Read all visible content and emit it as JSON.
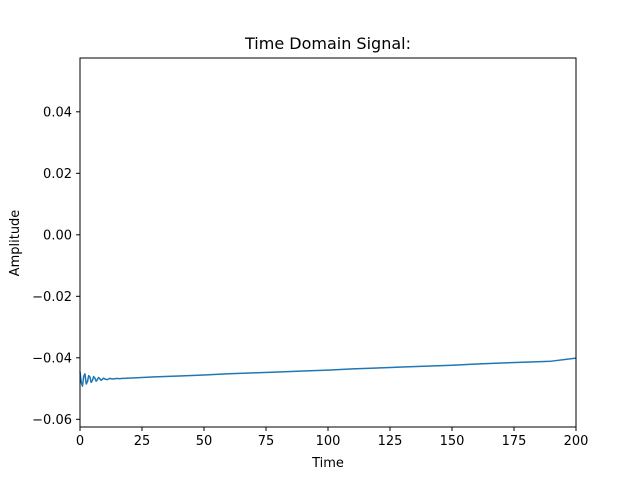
{
  "chart_data": {
    "type": "line",
    "title": "Time Domain Signal:",
    "xlabel": "Time",
    "ylabel": "Amplitude",
    "xlim": [
      0,
      200
    ],
    "ylim": [
      -0.0625,
      0.0575
    ],
    "xticks": [
      0,
      25,
      50,
      75,
      100,
      125,
      150,
      175,
      200
    ],
    "xtick_labels": [
      "0",
      "25",
      "50",
      "75",
      "100",
      "125",
      "150",
      "175",
      "200"
    ],
    "yticks": [
      -0.06,
      -0.04,
      -0.02,
      0.0,
      0.02,
      0.04
    ],
    "ytick_labels": [
      "−0.06",
      "−0.04",
      "−0.02",
      "0.00",
      "0.02",
      "0.04"
    ],
    "grid": false,
    "line_color": "#1f77b4",
    "series": [
      {
        "x": [
          0,
          0.5,
          1,
          1.5,
          2,
          2.5,
          3,
          3.5,
          4,
          4.5,
          5,
          5.5,
          6,
          6.5,
          7,
          7.5,
          8,
          8.5,
          9,
          9.5,
          10,
          11,
          12,
          13,
          14,
          15,
          16,
          17,
          18,
          19,
          20,
          25,
          30,
          40,
          50,
          60,
          70,
          80,
          90,
          100,
          110,
          120,
          130,
          140,
          150,
          160,
          170,
          180,
          190,
          200
        ],
        "y": [
          -0.0445,
          -0.048,
          -0.0492,
          -0.046,
          -0.0452,
          -0.0485,
          -0.0478,
          -0.0458,
          -0.0462,
          -0.048,
          -0.0474,
          -0.0461,
          -0.0466,
          -0.0476,
          -0.0471,
          -0.0464,
          -0.0468,
          -0.0473,
          -0.047,
          -0.0466,
          -0.0469,
          -0.0471,
          -0.0467,
          -0.0469,
          -0.0468,
          -0.0467,
          -0.0468,
          -0.0467,
          -0.0467,
          -0.0466,
          -0.0466,
          -0.0464,
          -0.0462,
          -0.0459,
          -0.0456,
          -0.0452,
          -0.0449,
          -0.0446,
          -0.0443,
          -0.044,
          -0.0436,
          -0.0433,
          -0.043,
          -0.0427,
          -0.0424,
          -0.042,
          -0.0417,
          -0.0414,
          -0.0411,
          -0.0401
        ]
      }
    ]
  }
}
